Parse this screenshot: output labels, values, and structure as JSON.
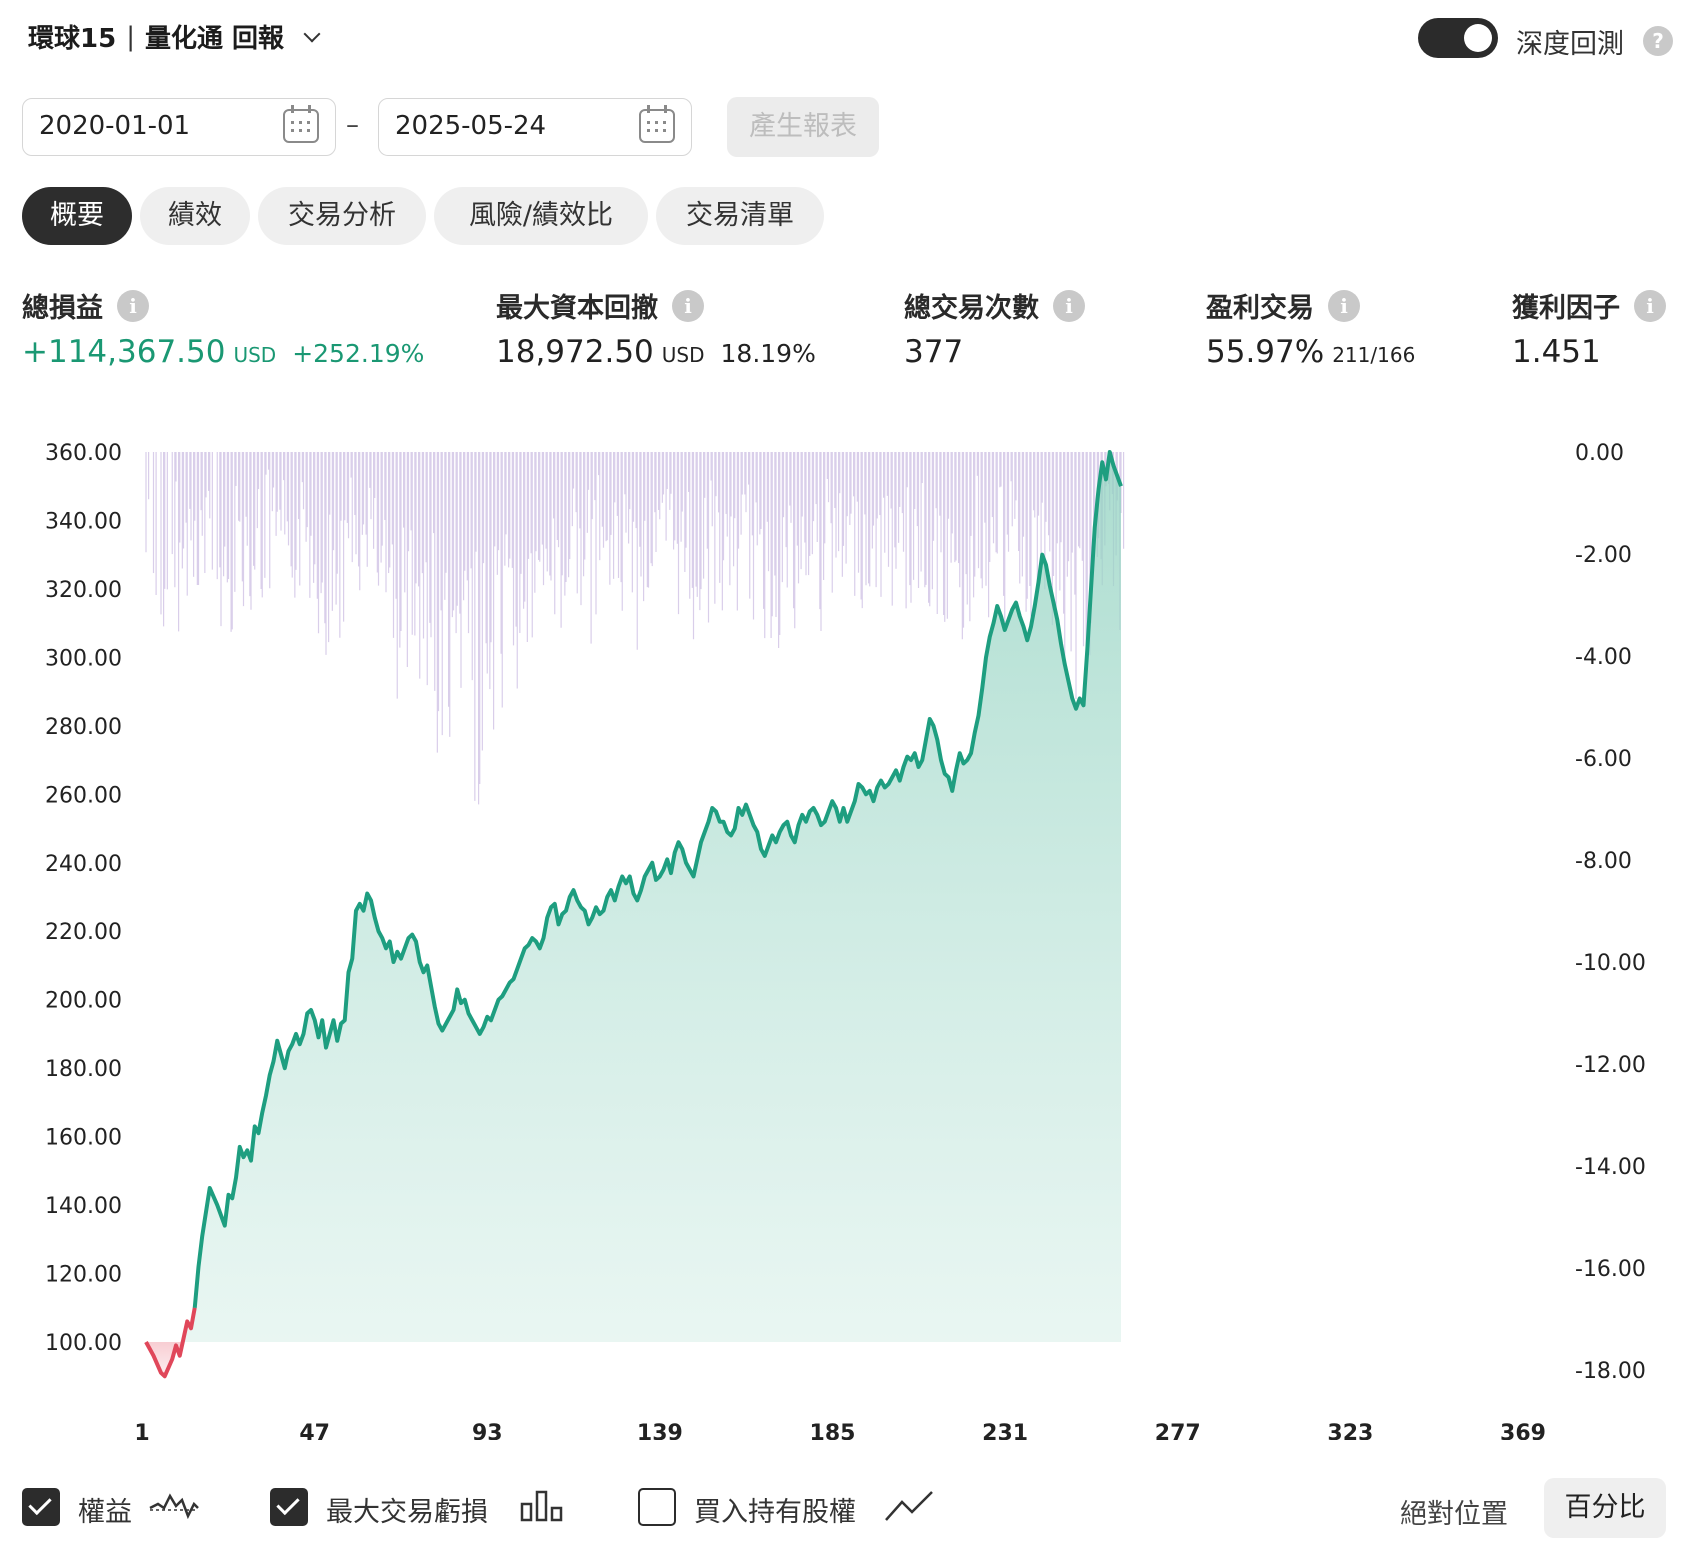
{
  "header": {
    "strategy_name": "環球15",
    "separator": "|",
    "product": "量化通 回報",
    "deep_backtest_label": "深度回測",
    "deep_backtest_on": true
  },
  "date_range": {
    "from": "2020-01-01",
    "dash": "–",
    "to": "2025-05-24",
    "generate_label": "產生報表"
  },
  "tabs": [
    {
      "label": "概要",
      "active": true
    },
    {
      "label": "績效",
      "active": false
    },
    {
      "label": "交易分析",
      "active": false
    },
    {
      "label": "風險/績效比",
      "active": false
    },
    {
      "label": "交易清單",
      "active": false
    }
  ],
  "stats": {
    "total_pnl": {
      "label": "總損益",
      "value": "+114,367.50",
      "unit": "USD",
      "pct": "+252.19%"
    },
    "max_drawdown": {
      "label": "最大資本回撤",
      "value": "18,972.50",
      "unit": "USD",
      "pct": "18.19%"
    },
    "total_trades": {
      "label": "總交易次數",
      "value": "377"
    },
    "win_trades": {
      "label": "盈利交易",
      "value": "55.97%",
      "sub": "211/166"
    },
    "profit_factor": {
      "label": "獲利因子",
      "value": "1.451"
    }
  },
  "chart_data": {
    "type": "line",
    "x_ticks": [
      "1",
      "47",
      "93",
      "139",
      "185",
      "231",
      "277",
      "323",
      "369"
    ],
    "x_range": [
      1,
      377
    ],
    "y_left_ticks": [
      "360.00",
      "340.00",
      "320.00",
      "300.00",
      "280.00",
      "260.00",
      "240.00",
      "220.00",
      "200.00",
      "180.00",
      "160.00",
      "140.00",
      "120.00",
      "100.00"
    ],
    "y_left_range": [
      100,
      360
    ],
    "y_right_ticks": [
      "0.00",
      "-2.00",
      "-4.00",
      "-6.00",
      "-8.00",
      "-10.00",
      "-12.00",
      "-14.00",
      "-16.00",
      "-18.00"
    ],
    "y_right_range": [
      -18,
      0
    ],
    "series": [
      {
        "name": "權益",
        "color": "#1e9e80",
        "negative_color": "#e0475a",
        "points": [
          [
            1,
            100
          ],
          [
            3,
            96
          ],
          [
            5,
            91
          ],
          [
            6,
            90
          ],
          [
            8,
            95
          ],
          [
            9,
            99
          ],
          [
            10,
            96
          ],
          [
            11,
            101
          ],
          [
            12,
            106
          ],
          [
            13,
            104
          ],
          [
            14,
            110
          ],
          [
            15,
            122
          ],
          [
            16,
            131
          ],
          [
            17,
            138
          ],
          [
            18,
            145
          ],
          [
            20,
            140
          ],
          [
            21,
            137
          ],
          [
            22,
            134
          ],
          [
            23,
            143
          ],
          [
            24,
            142
          ],
          [
            25,
            148
          ],
          [
            26,
            157
          ],
          [
            27,
            154
          ],
          [
            28,
            156
          ],
          [
            29,
            153
          ],
          [
            30,
            163
          ],
          [
            31,
            161
          ],
          [
            32,
            167
          ],
          [
            33,
            172
          ],
          [
            34,
            178
          ],
          [
            35,
            182
          ],
          [
            36,
            188
          ],
          [
            37,
            184
          ],
          [
            38,
            180
          ],
          [
            39,
            185
          ],
          [
            40,
            187
          ],
          [
            41,
            190
          ],
          [
            42,
            187
          ],
          [
            43,
            190
          ],
          [
            44,
            196
          ],
          [
            45,
            197
          ],
          [
            46,
            194
          ],
          [
            47,
            189
          ],
          [
            48,
            194
          ],
          [
            49,
            186
          ],
          [
            50,
            190
          ],
          [
            51,
            194
          ],
          [
            52,
            188
          ],
          [
            53,
            193
          ],
          [
            54,
            194
          ],
          [
            55,
            208
          ],
          [
            56,
            212
          ],
          [
            57,
            226
          ],
          [
            58,
            228
          ],
          [
            59,
            226
          ],
          [
            60,
            231
          ],
          [
            61,
            229
          ],
          [
            62,
            224
          ],
          [
            63,
            220
          ],
          [
            64,
            218
          ],
          [
            65,
            215
          ],
          [
            66,
            217
          ],
          [
            67,
            211
          ],
          [
            68,
            214
          ],
          [
            69,
            212
          ],
          [
            70,
            215
          ],
          [
            71,
            218
          ],
          [
            72,
            219
          ],
          [
            73,
            217
          ],
          [
            74,
            211
          ],
          [
            75,
            208
          ],
          [
            76,
            210
          ],
          [
            77,
            204
          ],
          [
            78,
            198
          ],
          [
            79,
            193
          ],
          [
            80,
            191
          ],
          [
            81,
            193
          ],
          [
            82,
            195
          ],
          [
            83,
            197
          ],
          [
            84,
            203
          ],
          [
            85,
            199
          ],
          [
            86,
            200
          ],
          [
            87,
            196
          ],
          [
            88,
            194
          ],
          [
            89,
            192
          ],
          [
            90,
            190
          ],
          [
            91,
            192
          ],
          [
            92,
            195
          ],
          [
            93,
            194
          ],
          [
            94,
            197
          ],
          [
            95,
            200
          ],
          [
            96,
            201
          ],
          [
            97,
            203
          ],
          [
            98,
            205
          ],
          [
            99,
            206
          ],
          [
            100,
            209
          ],
          [
            101,
            212
          ],
          [
            102,
            215
          ],
          [
            103,
            216
          ],
          [
            104,
            218
          ],
          [
            105,
            217
          ],
          [
            106,
            215
          ],
          [
            107,
            218
          ],
          [
            108,
            224
          ],
          [
            109,
            227
          ],
          [
            110,
            228
          ],
          [
            111,
            222
          ],
          [
            112,
            225
          ],
          [
            113,
            226
          ],
          [
            114,
            230
          ],
          [
            115,
            232
          ],
          [
            116,
            229
          ],
          [
            117,
            227
          ],
          [
            118,
            226
          ],
          [
            119,
            222
          ],
          [
            120,
            224
          ],
          [
            121,
            227
          ],
          [
            122,
            225
          ],
          [
            123,
            226
          ],
          [
            124,
            230
          ],
          [
            125,
            232
          ],
          [
            126,
            229
          ],
          [
            127,
            233
          ],
          [
            128,
            236
          ],
          [
            129,
            234
          ],
          [
            130,
            236
          ],
          [
            131,
            231
          ],
          [
            132,
            229
          ],
          [
            133,
            232
          ],
          [
            134,
            236
          ],
          [
            135,
            238
          ],
          [
            136,
            240
          ],
          [
            137,
            235
          ],
          [
            138,
            236
          ],
          [
            139,
            238
          ],
          [
            140,
            241
          ],
          [
            141,
            237
          ],
          [
            142,
            243
          ],
          [
            143,
            246
          ],
          [
            144,
            244
          ],
          [
            145,
            240
          ],
          [
            146,
            238
          ],
          [
            147,
            236
          ],
          [
            148,
            241
          ],
          [
            149,
            246
          ],
          [
            150,
            249
          ],
          [
            151,
            252
          ],
          [
            152,
            256
          ],
          [
            153,
            255
          ],
          [
            154,
            252
          ],
          [
            155,
            252
          ],
          [
            156,
            249
          ],
          [
            157,
            248
          ],
          [
            158,
            250
          ],
          [
            159,
            256
          ],
          [
            160,
            254
          ],
          [
            161,
            257
          ],
          [
            162,
            254
          ],
          [
            163,
            251
          ],
          [
            164,
            249
          ],
          [
            165,
            244
          ],
          [
            166,
            242
          ],
          [
            167,
            245
          ],
          [
            168,
            248
          ],
          [
            169,
            246
          ],
          [
            170,
            249
          ],
          [
            171,
            251
          ],
          [
            172,
            252
          ],
          [
            173,
            248
          ],
          [
            174,
            246
          ],
          [
            175,
            251
          ],
          [
            176,
            254
          ],
          [
            177,
            252
          ],
          [
            178,
            255
          ],
          [
            179,
            256
          ],
          [
            180,
            254
          ],
          [
            181,
            251
          ],
          [
            182,
            252
          ],
          [
            183,
            255
          ],
          [
            184,
            258
          ],
          [
            185,
            256
          ],
          [
            186,
            252
          ],
          [
            187,
            256
          ],
          [
            188,
            252
          ],
          [
            189,
            255
          ],
          [
            190,
            258
          ],
          [
            191,
            263
          ],
          [
            192,
            262
          ],
          [
            193,
            260
          ],
          [
            194,
            261
          ],
          [
            195,
            258
          ],
          [
            196,
            262
          ],
          [
            197,
            264
          ],
          [
            198,
            262
          ],
          [
            199,
            263
          ],
          [
            200,
            265
          ],
          [
            201,
            267
          ],
          [
            202,
            264
          ],
          [
            203,
            268
          ],
          [
            204,
            271
          ],
          [
            205,
            270
          ],
          [
            206,
            272
          ],
          [
            207,
            268
          ],
          [
            208,
            270
          ],
          [
            209,
            276
          ],
          [
            210,
            282
          ],
          [
            211,
            280
          ],
          [
            212,
            276
          ],
          [
            213,
            270
          ],
          [
            214,
            266
          ],
          [
            215,
            265
          ],
          [
            216,
            261
          ],
          [
            217,
            267
          ],
          [
            218,
            272
          ],
          [
            219,
            269
          ],
          [
            220,
            270
          ],
          [
            221,
            272
          ],
          [
            222,
            278
          ],
          [
            223,
            283
          ],
          [
            224,
            291
          ],
          [
            225,
            300
          ],
          [
            226,
            306
          ],
          [
            227,
            310
          ],
          [
            228,
            315
          ],
          [
            229,
            312
          ],
          [
            230,
            308
          ],
          [
            231,
            311
          ],
          [
            232,
            314
          ],
          [
            233,
            316
          ],
          [
            234,
            312
          ],
          [
            235,
            309
          ],
          [
            236,
            305
          ],
          [
            237,
            309
          ],
          [
            238,
            315
          ],
          [
            239,
            322
          ],
          [
            240,
            330
          ],
          [
            241,
            327
          ],
          [
            242,
            321
          ],
          [
            243,
            316
          ],
          [
            244,
            311
          ],
          [
            245,
            304
          ],
          [
            246,
            298
          ],
          [
            247,
            293
          ],
          [
            248,
            288
          ],
          [
            249,
            285
          ],
          [
            250,
            288
          ],
          [
            251,
            286
          ],
          [
            252,
            302
          ],
          [
            253,
            320
          ],
          [
            254,
            338
          ],
          [
            255,
            349
          ],
          [
            256,
            357
          ],
          [
            257,
            352
          ],
          [
            258,
            360
          ],
          [
            259,
            356
          ],
          [
            260,
            353
          ],
          [
            261,
            350
          ]
        ]
      },
      {
        "name": "最大交易虧損",
        "color": "#b9a6d8",
        "note": "per-trade drawdown bars on right axis (0 to -18), dense histogram"
      }
    ]
  },
  "legend": {
    "items": [
      {
        "label": "權益",
        "checked": true,
        "icon": "equity-wave-icon"
      },
      {
        "label": "最大交易虧損",
        "checked": true,
        "icon": "bar-chart-icon"
      },
      {
        "label": "買入持有股權",
        "checked": false,
        "icon": "line-trend-icon"
      }
    ],
    "absolute_label": "絕對位置",
    "percent_label": "百分比"
  }
}
